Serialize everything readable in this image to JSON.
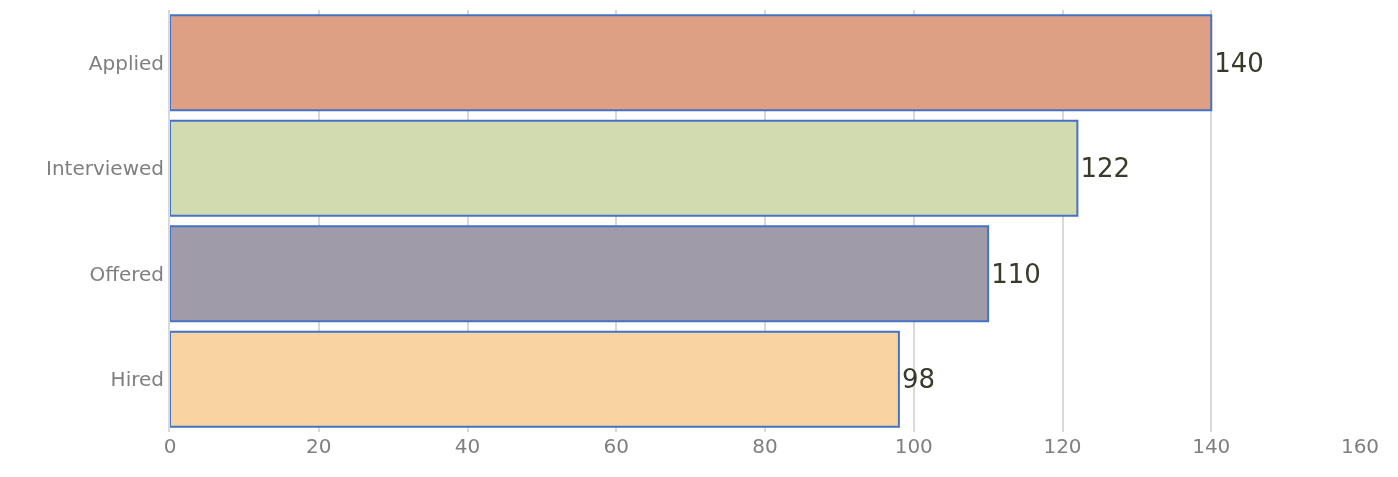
{
  "chart_data": {
    "type": "bar",
    "orientation": "horizontal",
    "categories": [
      "Applied",
      "Interviewed",
      "Offered",
      "Hired"
    ],
    "values": [
      140,
      122,
      110,
      98
    ],
    "colors": [
      "#dda085",
      "#d2dbb0",
      "#a09ba8",
      "#f9d4a3"
    ],
    "xlim": [
      0,
      160
    ],
    "xticks": [
      0,
      20,
      40,
      60,
      80,
      100,
      120,
      140,
      160
    ],
    "grid": "x",
    "data_labels": true,
    "legend": false
  }
}
